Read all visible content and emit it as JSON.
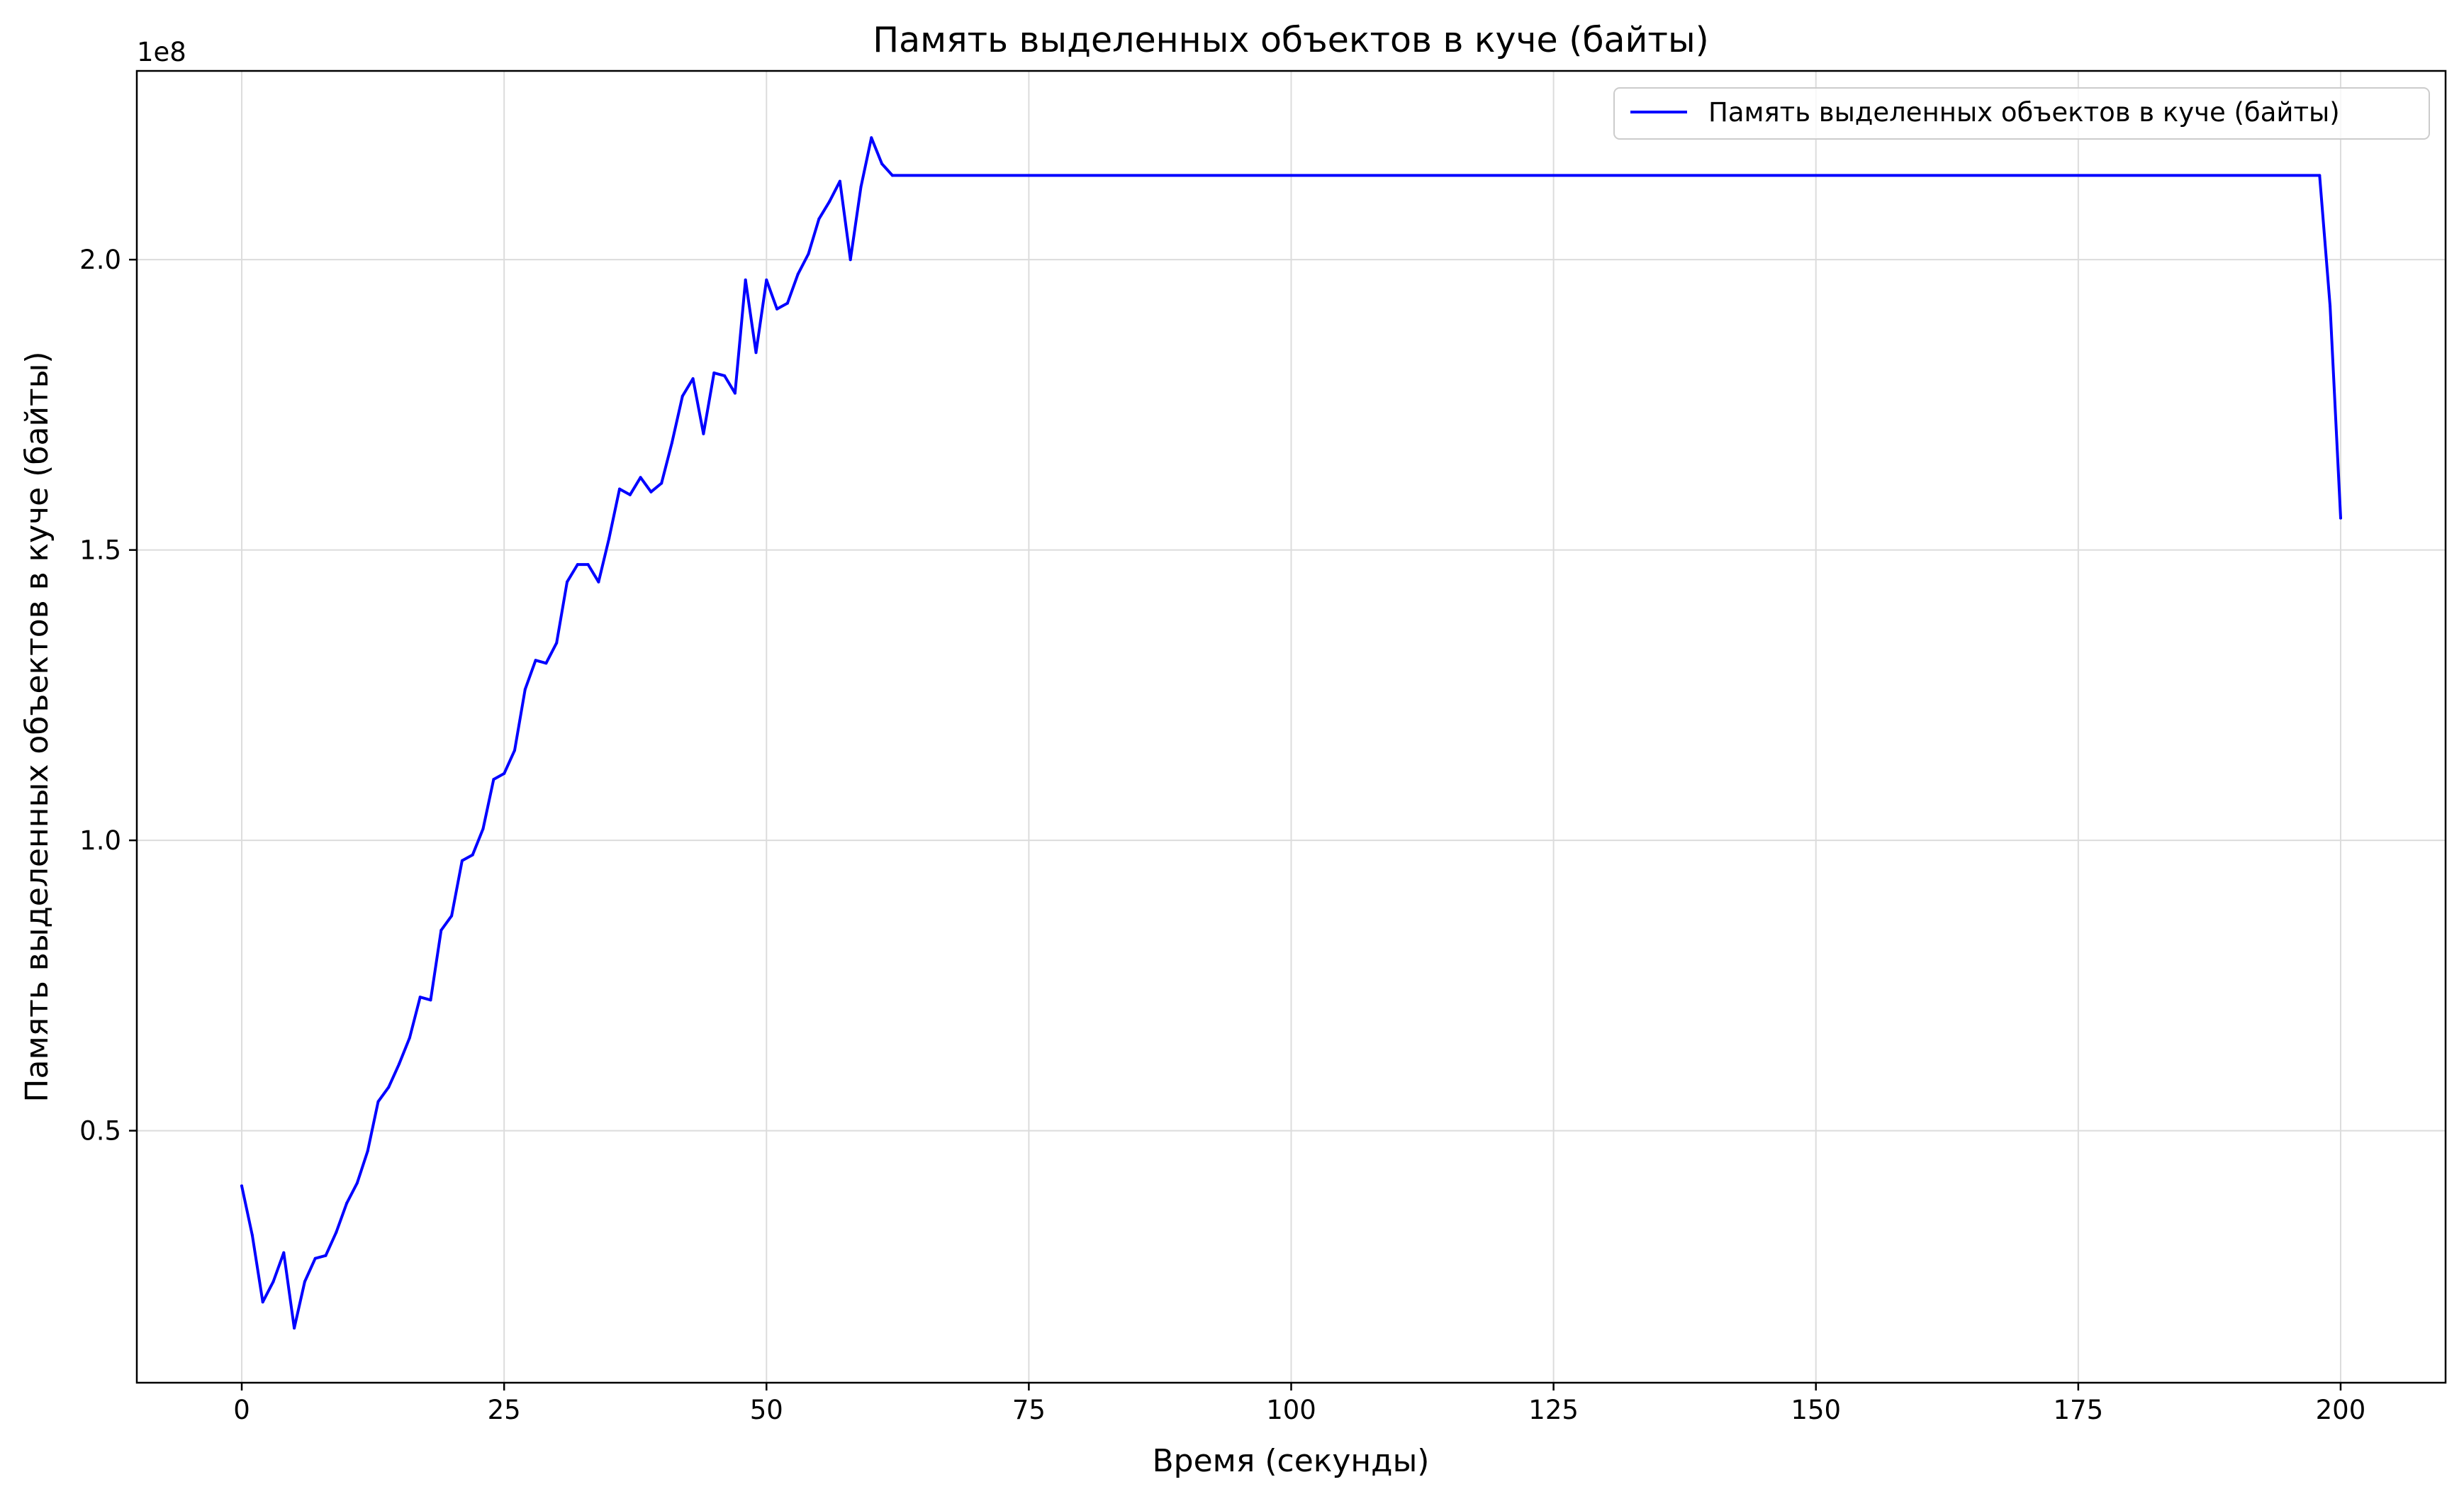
{
  "chart_data": {
    "type": "line",
    "title": "Память выделенных объектов в куче (байты)",
    "xlabel": "Время (секунды)",
    "ylabel": "Память выделенных объектов в куче (байты)",
    "y_offset_label": "1e8",
    "y_scale": 100000000,
    "xlim": [
      -10,
      210
    ],
    "ylim": [
      0.066,
      2.325
    ],
    "x_ticks": [
      0,
      25,
      50,
      75,
      100,
      125,
      150,
      175,
      200
    ],
    "x_tick_labels": [
      "0",
      "25",
      "50",
      "75",
      "100",
      "125",
      "150",
      "175",
      "200"
    ],
    "y_ticks": [
      0.5,
      1.0,
      1.5,
      2.0
    ],
    "y_tick_labels": [
      "0.5",
      "1.0",
      "1.5",
      "2.0"
    ],
    "grid": true,
    "legend_position": "top-right",
    "series": [
      {
        "name": "Память выделенных объектов в куче (байты)",
        "color": "#0000ff",
        "x": [
          0,
          1,
          2,
          3,
          4,
          5,
          6,
          7,
          8,
          9,
          10,
          11,
          12,
          13,
          14,
          15,
          16,
          17,
          18,
          19,
          20,
          21,
          22,
          23,
          24,
          25,
          26,
          27,
          28,
          29,
          30,
          31,
          32,
          33,
          34,
          35,
          36,
          37,
          38,
          39,
          40,
          41,
          42,
          43,
          44,
          45,
          46,
          47,
          48,
          49,
          50,
          51,
          52,
          53,
          54,
          55,
          56,
          57,
          58,
          59,
          60,
          61,
          62,
          198,
          199,
          200
        ],
        "values": [
          0.405,
          0.32,
          0.205,
          0.24,
          0.29,
          0.16,
          0.24,
          0.28,
          0.285,
          0.325,
          0.375,
          0.41,
          0.465,
          0.55,
          0.575,
          0.615,
          0.66,
          0.73,
          0.725,
          0.845,
          0.87,
          0.965,
          0.975,
          1.02,
          1.105,
          1.115,
          1.155,
          1.26,
          1.31,
          1.305,
          1.34,
          1.445,
          1.475,
          1.475,
          1.445,
          1.52,
          1.605,
          1.595,
          1.625,
          1.6,
          1.615,
          1.685,
          1.765,
          1.795,
          1.7,
          1.805,
          1.8,
          1.77,
          1.965,
          1.84,
          1.965,
          1.915,
          1.925,
          1.975,
          2.01,
          2.07,
          2.1,
          2.135,
          2.0,
          2.125,
          2.21,
          2.165,
          2.145,
          2.145,
          1.92,
          1.555
        ]
      }
    ]
  }
}
